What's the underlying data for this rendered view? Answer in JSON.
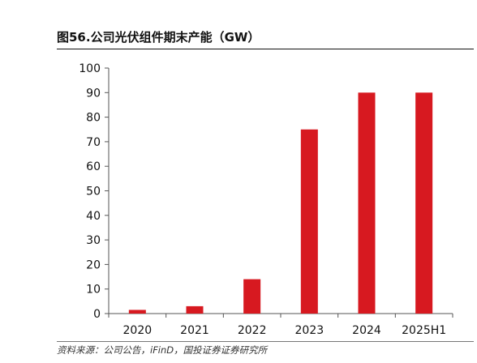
{
  "chart_data": {
    "type": "bar",
    "title": "图56.公司光伏组件期末产能（GW）",
    "categories": [
      "2020",
      "2021",
      "2022",
      "2023",
      "2024",
      "2025H1"
    ],
    "series": [
      {
        "values": [
          1.5,
          3,
          14,
          75,
          90,
          90
        ]
      }
    ],
    "ylim": [
      0,
      100
    ],
    "yticks": [
      0,
      10,
      20,
      30,
      40,
      50,
      60,
      70,
      80,
      90,
      100
    ],
    "grid": false,
    "legend": "none",
    "bar_color": "#d71920"
  },
  "source": "资料来源：公司公告，iFinD，国投证券证券研究所"
}
